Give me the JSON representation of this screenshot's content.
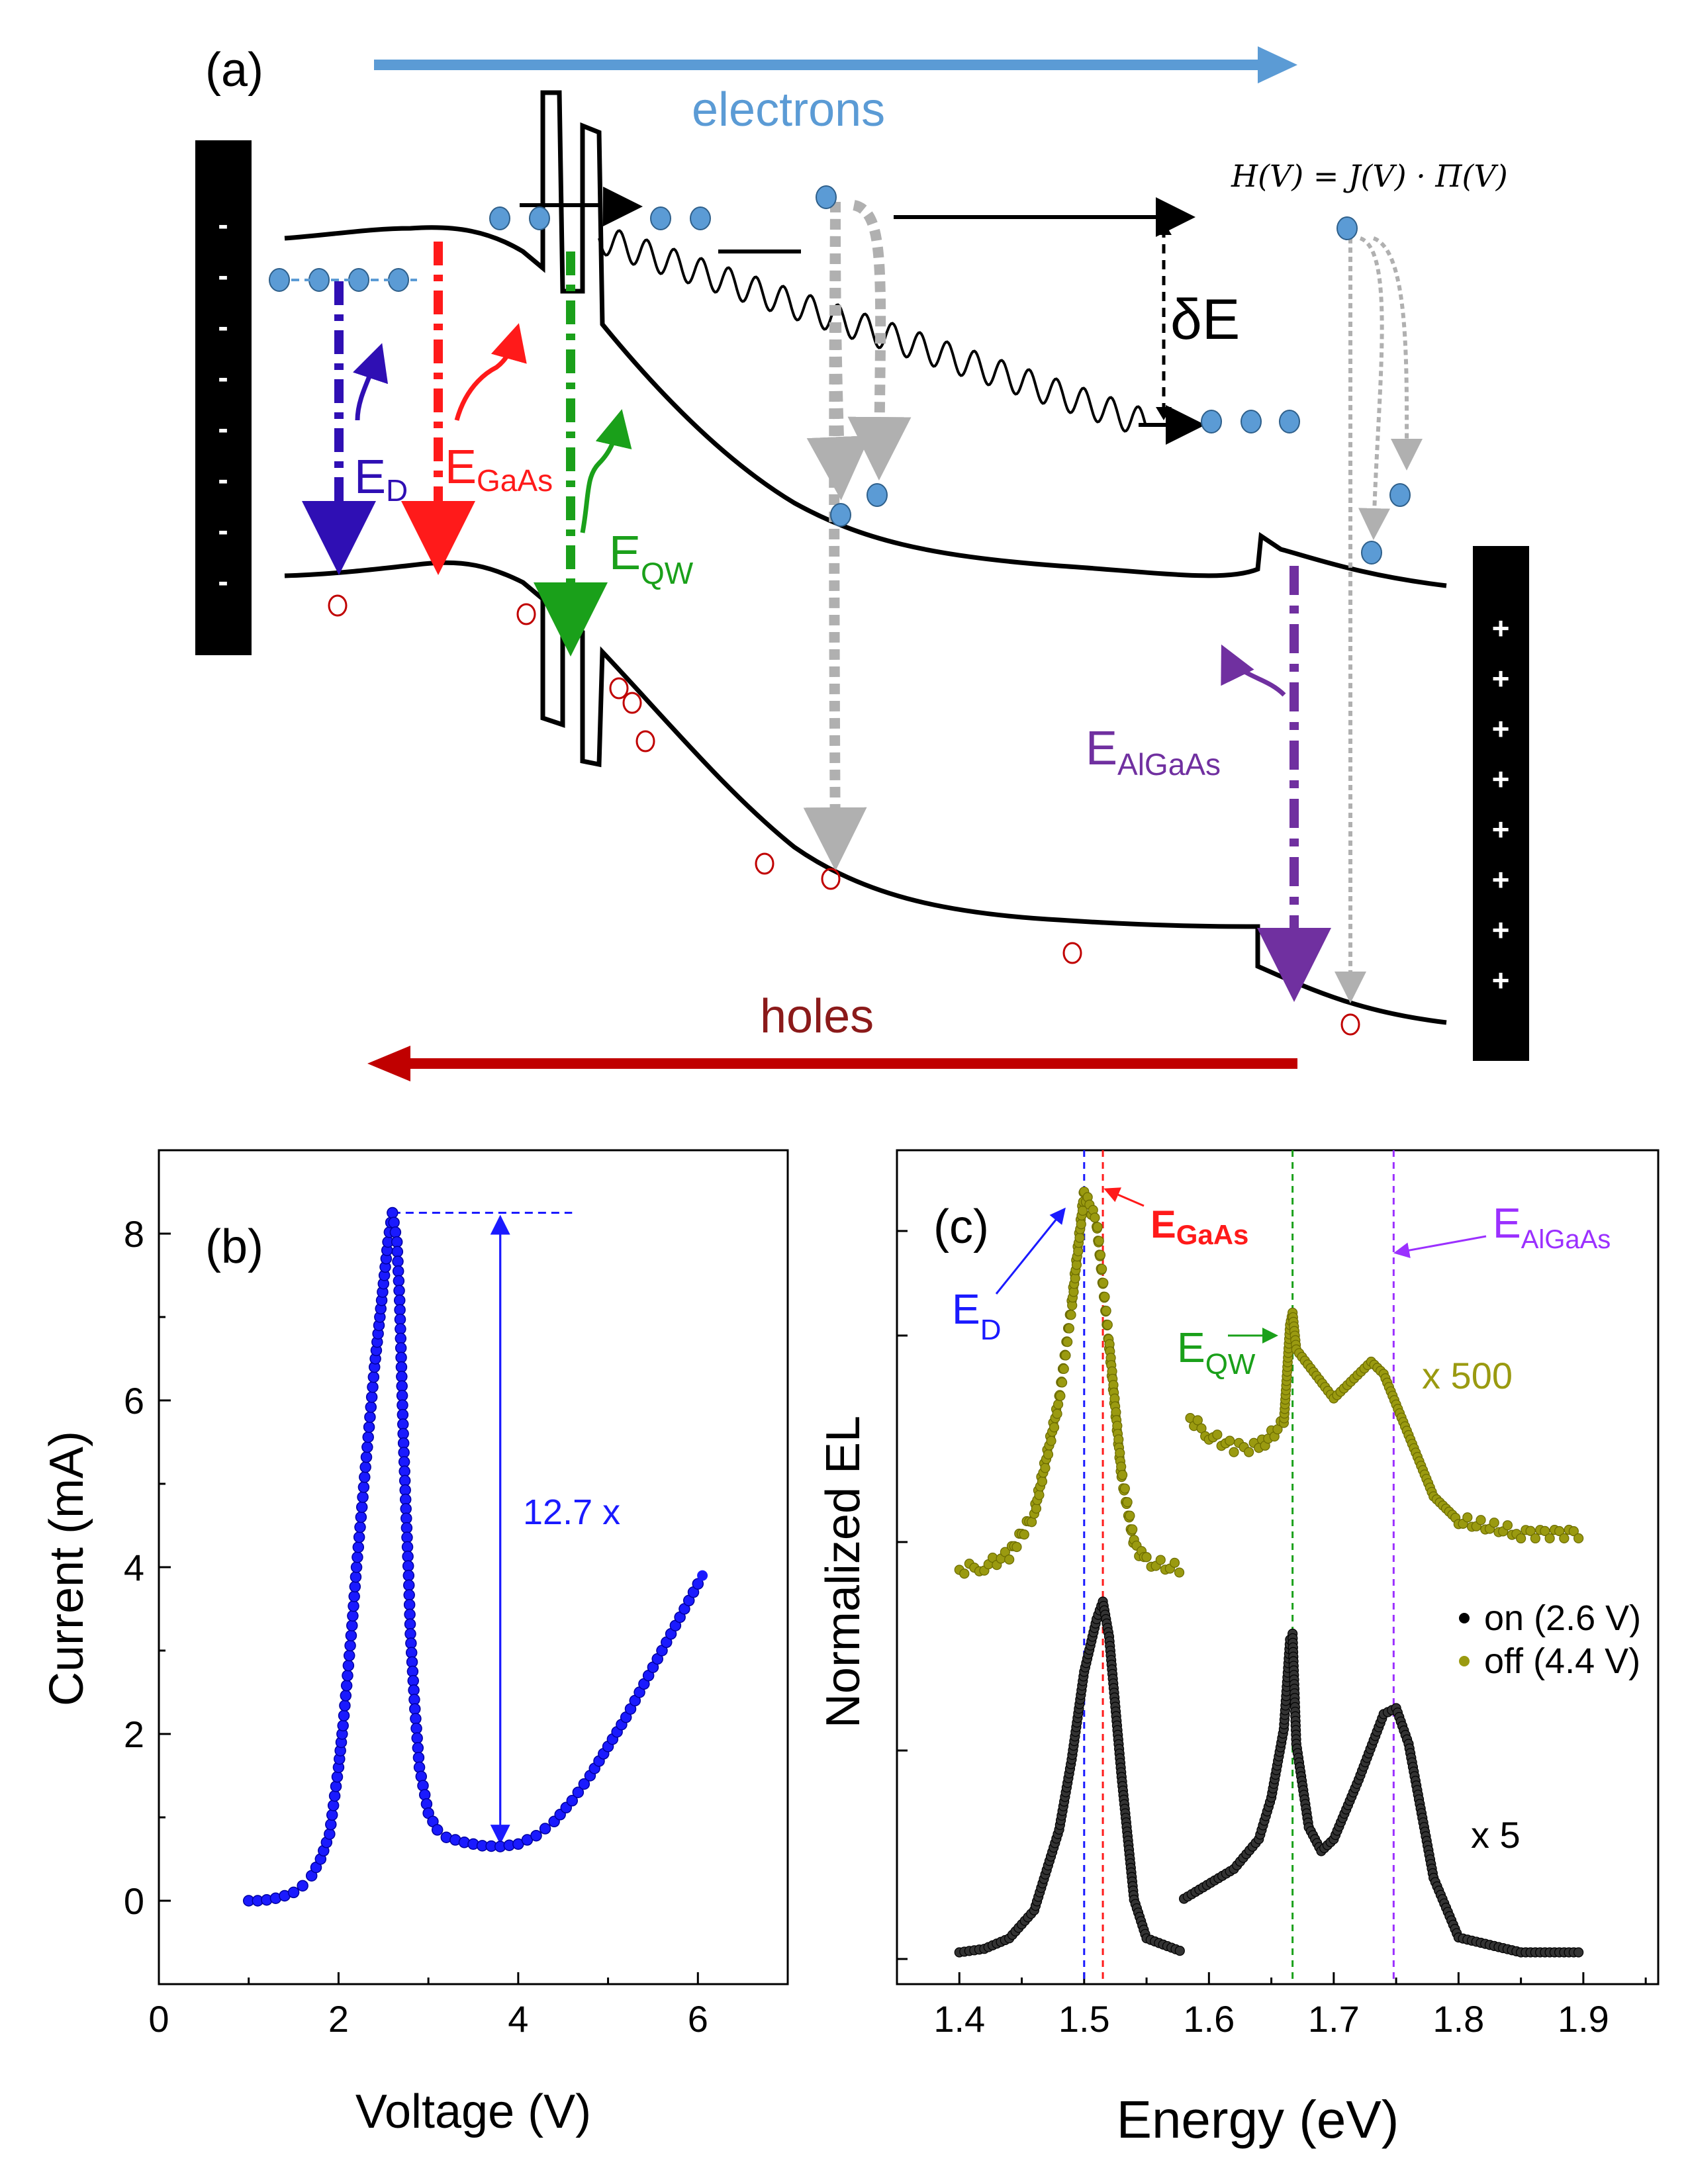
{
  "panel_a": {
    "label": "(a)",
    "electrons_label": "electrons",
    "holes_label": "holes",
    "formula": "H(V) = J(V) · Π(V)",
    "delta_e": "δE",
    "ed": {
      "main": "E",
      "sub": "D"
    },
    "egaas": {
      "main": "E",
      "sub": "GaAs"
    },
    "eqw": {
      "main": "E",
      "sub": "QW"
    },
    "ealgaas": {
      "main": "E",
      "sub": "AlGaAs"
    },
    "left_contact_signs": [
      "-",
      "-",
      "-",
      "-",
      "-",
      "-",
      "-",
      "-"
    ],
    "right_contact_signs": [
      "+",
      "+",
      "+",
      "+",
      "+",
      "+",
      "+",
      "+"
    ],
    "colors": {
      "electrons": "#5b9bd5",
      "holes": "#c00000",
      "ed": "#2f0fb4",
      "egaas": "#ff1a1a",
      "eqw": "#1aa01a",
      "ealgaas": "#7030a0",
      "gray": "#b0b0b0"
    }
  },
  "chart_data": [
    {
      "type": "scatter",
      "panel_label": "(b)",
      "xlabel": "Voltage (V)",
      "ylabel": "Current (mA)",
      "xlim": [
        0,
        7
      ],
      "ylim": [
        -1,
        9
      ],
      "xticks": [
        0,
        2,
        4,
        6
      ],
      "yticks": [
        0,
        2,
        4,
        6,
        8
      ],
      "annotation": "12.7 x",
      "peak": {
        "voltage": 2.6,
        "current": 8.25
      },
      "valley": {
        "voltage": 3.8,
        "current": 0.65
      },
      "series": [
        {
          "name": "I-V",
          "color": "#1a1aff",
          "points": [
            [
              1.0,
              0.0
            ],
            [
              1.1,
              0.0
            ],
            [
              1.2,
              0.01
            ],
            [
              1.3,
              0.03
            ],
            [
              1.4,
              0.06
            ],
            [
              1.5,
              0.1
            ],
            [
              1.6,
              0.18
            ],
            [
              1.7,
              0.3
            ],
            [
              1.8,
              0.5
            ],
            [
              1.9,
              0.8
            ],
            [
              2.0,
              1.6
            ],
            [
              2.05,
              2.1
            ],
            [
              2.1,
              2.7
            ],
            [
              2.15,
              3.3
            ],
            [
              2.2,
              4.0
            ],
            [
              2.25,
              4.6
            ],
            [
              2.3,
              5.2
            ],
            [
              2.35,
              5.8
            ],
            [
              2.4,
              6.4
            ],
            [
              2.45,
              6.9
            ],
            [
              2.5,
              7.4
            ],
            [
              2.55,
              7.9
            ],
            [
              2.6,
              8.25
            ],
            [
              2.65,
              7.9
            ],
            [
              2.68,
              7.2
            ],
            [
              2.7,
              6.4
            ],
            [
              2.72,
              5.6
            ],
            [
              2.75,
              4.7
            ],
            [
              2.78,
              3.9
            ],
            [
              2.8,
              3.2
            ],
            [
              2.85,
              2.3
            ],
            [
              2.9,
              1.6
            ],
            [
              3.0,
              1.05
            ],
            [
              3.1,
              0.85
            ],
            [
              3.2,
              0.76
            ],
            [
              3.4,
              0.7
            ],
            [
              3.6,
              0.66
            ],
            [
              3.8,
              0.65
            ],
            [
              4.0,
              0.68
            ],
            [
              4.2,
              0.78
            ],
            [
              4.4,
              0.95
            ],
            [
              4.6,
              1.2
            ],
            [
              4.8,
              1.5
            ],
            [
              5.0,
              1.85
            ],
            [
              5.2,
              2.2
            ],
            [
              5.4,
              2.6
            ],
            [
              5.6,
              3.0
            ],
            [
              5.8,
              3.4
            ],
            [
              6.0,
              3.8
            ],
            [
              6.05,
              3.9
            ]
          ]
        }
      ]
    },
    {
      "type": "scatter",
      "panel_label": "(c)",
      "xlabel": "Energy (eV)",
      "ylabel": "Normalized EL",
      "xlim": [
        1.35,
        1.96
      ],
      "xticks": [
        1.4,
        1.5,
        1.6,
        1.7,
        1.8,
        1.9
      ],
      "legend": [
        {
          "label": "on (2.6 V)",
          "color": "#000000"
        },
        {
          "label": "off (4.4 V)",
          "color": "#9a9a10"
        }
      ],
      "legend_position": "right",
      "scale_labels": {
        "on_right": "x 5",
        "off_right": "x 500"
      },
      "markers": [
        {
          "label_main": "E",
          "label_sub": "D",
          "energy": 1.5,
          "color": "#1a1aff"
        },
        {
          "label_main": "E",
          "label_sub": "GaAs",
          "energy": 1.515,
          "color": "#ff1a1a"
        },
        {
          "label_main": "E",
          "label_sub": "QW",
          "energy": 1.667,
          "color": "#1aa01a"
        },
        {
          "label_main": "E",
          "label_sub": "AlGaAs",
          "energy": 1.748,
          "color": "#9b30ff"
        }
      ],
      "series": [
        {
          "name": "on (2.6 V) low-energy",
          "values_normalized": true,
          "points": [
            [
              1.4,
              0.0
            ],
            [
              1.42,
              0.01
            ],
            [
              1.44,
              0.04
            ],
            [
              1.46,
              0.12
            ],
            [
              1.48,
              0.35
            ],
            [
              1.49,
              0.55
            ],
            [
              1.5,
              0.8
            ],
            [
              1.51,
              0.95
            ],
            [
              1.515,
              1.0
            ],
            [
              1.52,
              0.9
            ],
            [
              1.53,
              0.5
            ],
            [
              1.54,
              0.15
            ],
            [
              1.55,
              0.04
            ],
            [
              1.58,
              0.0
            ]
          ]
        },
        {
          "name": "on (2.6 V) high-energy x5",
          "points": [
            [
              1.58,
              0.18
            ],
            [
              1.62,
              0.28
            ],
            [
              1.64,
              0.38
            ],
            [
              1.65,
              0.52
            ],
            [
              1.66,
              0.75
            ],
            [
              1.665,
              1.05
            ],
            [
              1.667,
              1.07
            ],
            [
              1.67,
              0.7
            ],
            [
              1.68,
              0.42
            ],
            [
              1.69,
              0.34
            ],
            [
              1.7,
              0.38
            ],
            [
              1.72,
              0.58
            ],
            [
              1.74,
              0.8
            ],
            [
              1.75,
              0.82
            ],
            [
              1.76,
              0.7
            ],
            [
              1.78,
              0.25
            ],
            [
              1.8,
              0.05
            ],
            [
              1.85,
              0.0
            ],
            [
              1.9,
              0.0
            ]
          ]
        },
        {
          "name": "off (4.4 V) low-energy",
          "points": [
            [
              1.4,
              0.0
            ],
            [
              1.42,
              0.01
            ],
            [
              1.44,
              0.04
            ],
            [
              1.46,
              0.15
            ],
            [
              1.48,
              0.45
            ],
            [
              1.49,
              0.7
            ],
            [
              1.5,
              1.0
            ],
            [
              1.51,
              0.92
            ],
            [
              1.52,
              0.6
            ],
            [
              1.53,
              0.25
            ],
            [
              1.54,
              0.07
            ],
            [
              1.55,
              0.02
            ],
            [
              1.58,
              0.0
            ]
          ]
        },
        {
          "name": "off (4.4 V) high-energy x500",
          "points": [
            [
              1.585,
              0.62
            ],
            [
              1.6,
              0.55
            ],
            [
              1.62,
              0.5
            ],
            [
              1.64,
              0.5
            ],
            [
              1.66,
              0.6
            ],
            [
              1.665,
              1.0
            ],
            [
              1.667,
              1.05
            ],
            [
              1.67,
              0.9
            ],
            [
              1.7,
              0.7
            ],
            [
              1.73,
              0.85
            ],
            [
              1.74,
              0.8
            ],
            [
              1.76,
              0.55
            ],
            [
              1.78,
              0.3
            ],
            [
              1.8,
              0.2
            ],
            [
              1.85,
              0.15
            ],
            [
              1.9,
              0.15
            ]
          ]
        }
      ]
    }
  ]
}
